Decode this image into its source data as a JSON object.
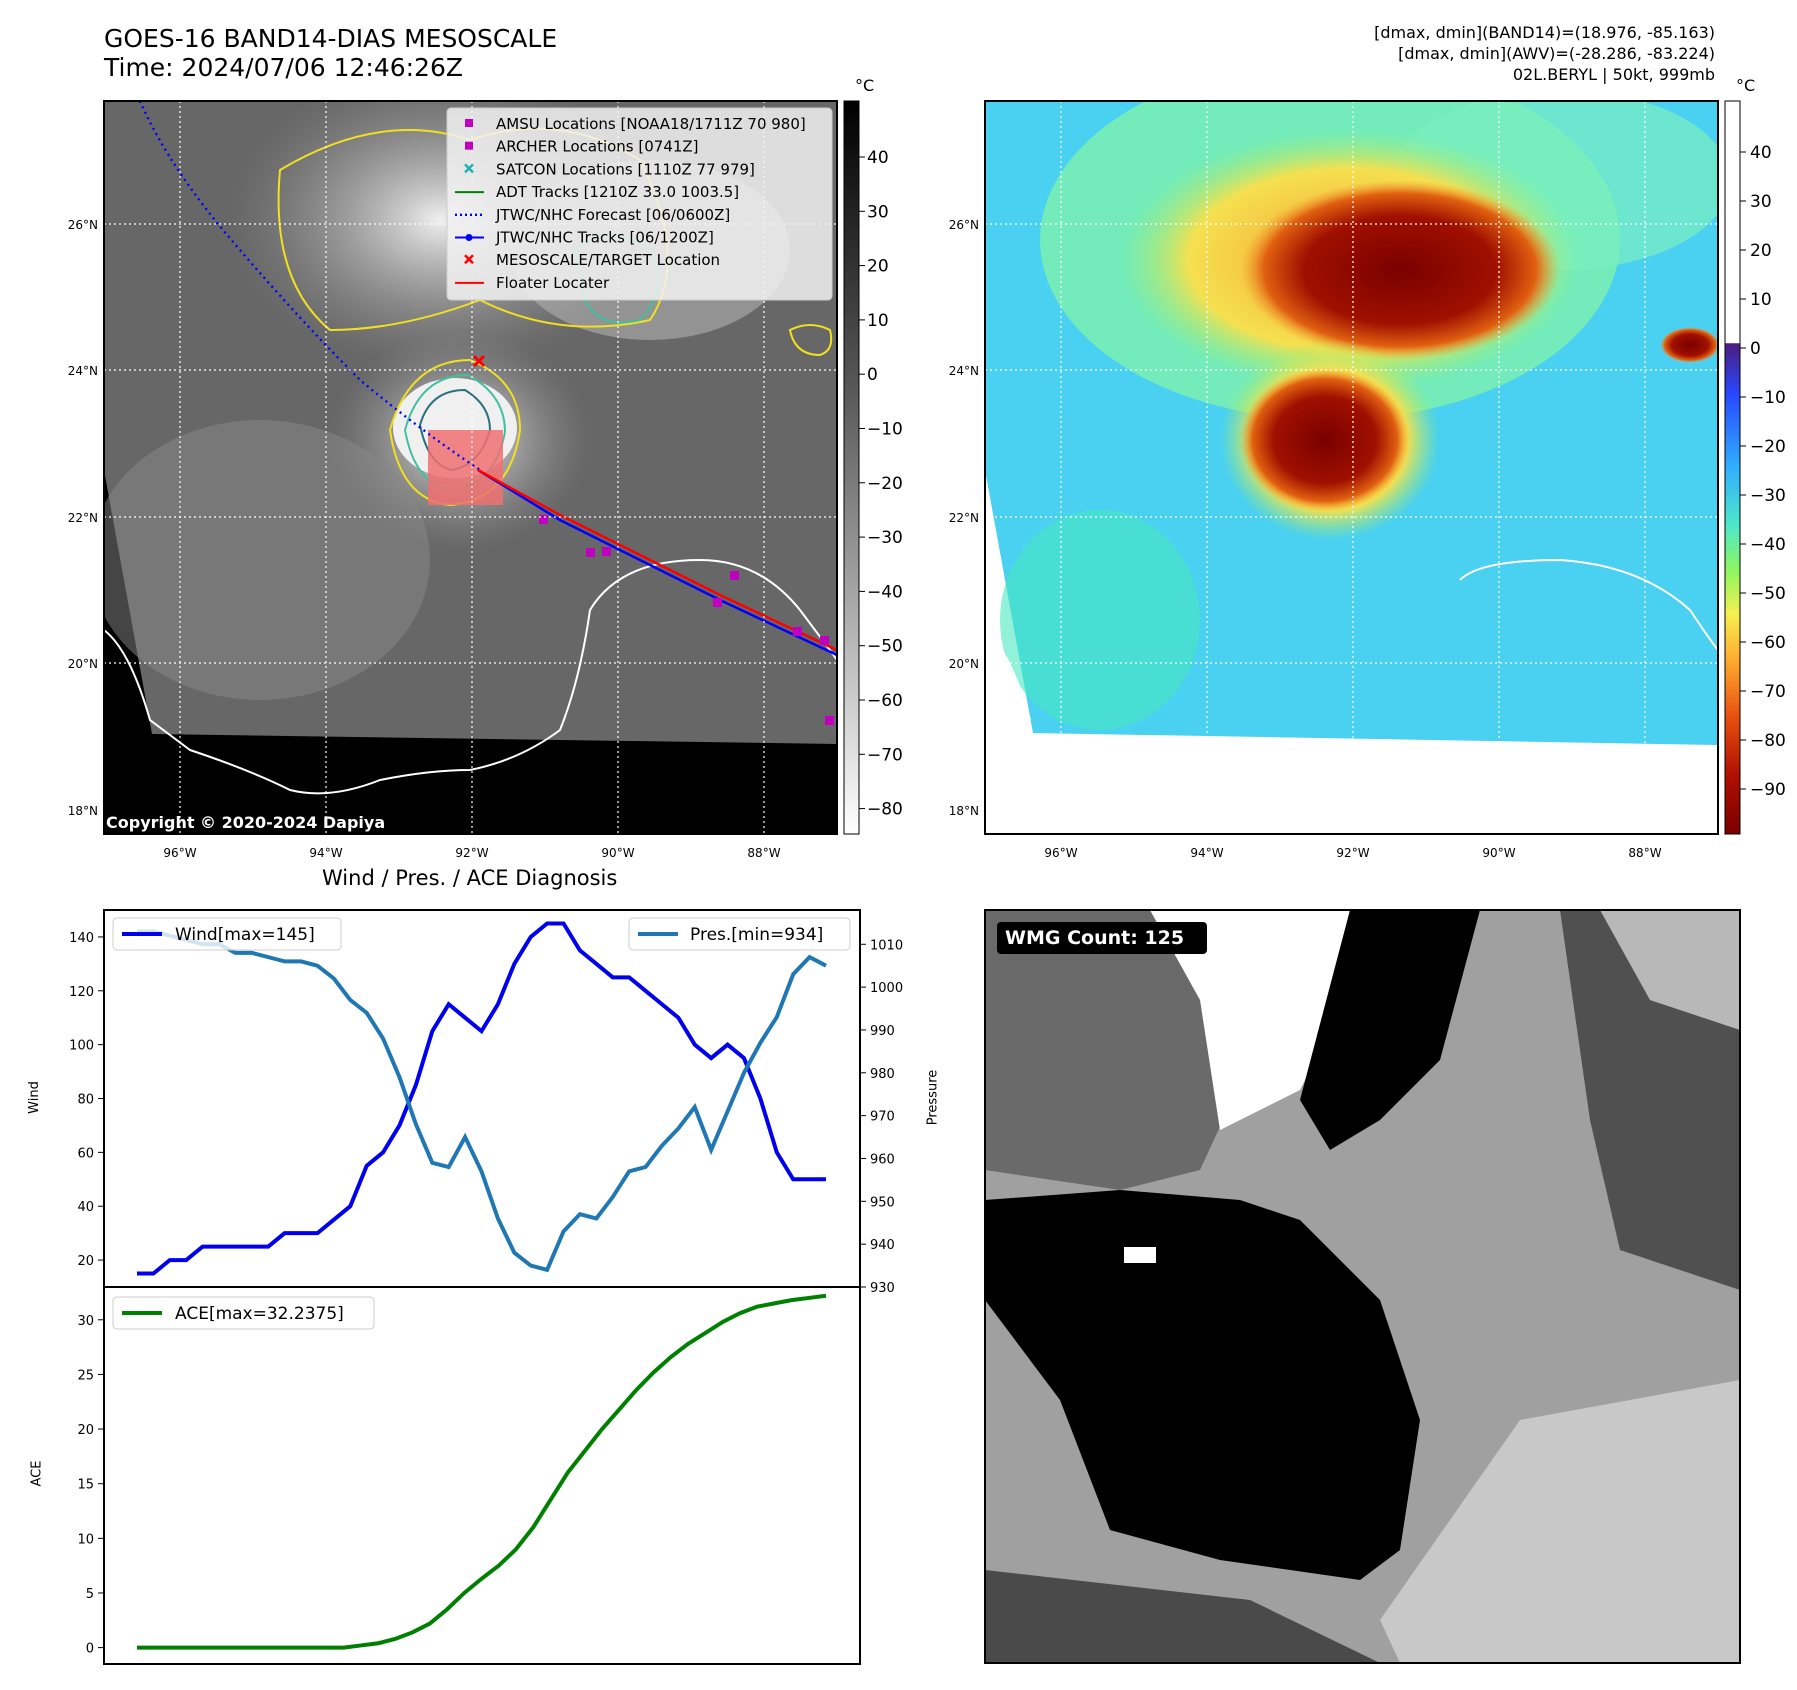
{
  "header": {
    "title_line1": "GOES-16 BAND14-DIAS MESOSCALE",
    "title_line2": "Time: 2024/07/06 12:46:26Z",
    "meta_line1": "[dmax, dmin](BAND14)=(18.976, -85.163)",
    "meta_line2": "[dmax, dmin](AWV)=(-28.286, -83.224)",
    "meta_line3": "02L.BERYL | 50kt, 999mb"
  },
  "map_axes": {
    "lat_ticks": [
      "26°N",
      "24°N",
      "22°N",
      "20°N",
      "18°N"
    ],
    "lon_ticks": [
      "96°W",
      "94°W",
      "92°W",
      "90°W",
      "88°W"
    ],
    "copyright": "Copyright © 2020-2024 Dapiya"
  },
  "colorbar_left": {
    "unit": "°C",
    "ticks": [
      "40",
      "30",
      "20",
      "10",
      "0",
      "−10",
      "−20",
      "−30",
      "−40",
      "−50",
      "−60",
      "−70",
      "−80"
    ]
  },
  "colorbar_right": {
    "unit": "°C",
    "ticks": [
      "40",
      "30",
      "20",
      "10",
      "0",
      "−10",
      "−20",
      "−30",
      "−40",
      "−50",
      "−60",
      "−70",
      "−80",
      "−90"
    ]
  },
  "legend": {
    "items": [
      {
        "label": "AMSU Locations [NOAA18/1711Z 70 980]",
        "color": "#c000c0",
        "marker": "square"
      },
      {
        "label": "ARCHER Locations [0741Z]",
        "color": "#c000c0",
        "marker": "square"
      },
      {
        "label": "SATCON Locations [1110Z 77 979]",
        "color": "#20b0b0",
        "marker": "x"
      },
      {
        "label": "ADT Tracks [1210Z 33.0 1003.5]",
        "color": "#008000",
        "marker": "line"
      },
      {
        "label": "JTWC/NHC Forecast [06/0600Z]",
        "color": "#0000ff",
        "marker": "dotted"
      },
      {
        "label": "JTWC/NHC Tracks [06/1200Z]",
        "color": "#0000ff",
        "marker": "line-dot"
      },
      {
        "label": "MESOSCALE/TARGET Location",
        "color": "#ff0000",
        "marker": "x"
      },
      {
        "label": "Floater Locater",
        "color": "#ff0000",
        "marker": "line"
      }
    ]
  },
  "wmg": {
    "label": "WMG Count: 125"
  },
  "chart_data": [
    {
      "type": "line",
      "title": "Wind / Pres. / ACE Diagnosis",
      "ylabel": "Wind",
      "y2label": "Pressure",
      "ylim": [
        10,
        150
      ],
      "y2lim": [
        930,
        1018
      ],
      "yticks": [
        20,
        40,
        60,
        80,
        100,
        120,
        140
      ],
      "y2ticks": [
        930,
        940,
        950,
        960,
        970,
        980,
        990,
        1000,
        1010
      ],
      "series": [
        {
          "name": "Wind[max=145]",
          "color": "#0000ee",
          "values": [
            15,
            15,
            20,
            20,
            25,
            25,
            25,
            25,
            25,
            30,
            30,
            30,
            35,
            40,
            55,
            60,
            70,
            85,
            105,
            115,
            110,
            105,
            115,
            130,
            140,
            145,
            145,
            135,
            130,
            125,
            125,
            120,
            115,
            110,
            100,
            95,
            100,
            95,
            80,
            60,
            50,
            50,
            50
          ]
        },
        {
          "name": "Pres.[min=934]",
          "color": "#1f77b4",
          "values": [
            1013,
            1013,
            1012,
            1011,
            1010,
            1010,
            1008,
            1008,
            1007,
            1006,
            1006,
            1005,
            1002,
            997,
            994,
            988,
            979,
            968,
            959,
            958,
            965,
            957,
            946,
            938,
            935,
            934,
            943,
            947,
            946,
            951,
            957,
            958,
            963,
            967,
            972,
            962,
            971,
            980,
            987,
            993,
            1003,
            1007,
            1005
          ]
        }
      ]
    },
    {
      "type": "line",
      "ylabel": "ACE",
      "ylim": [
        -1.5,
        33
      ],
      "yticks": [
        0,
        5,
        10,
        15,
        20,
        25,
        30
      ],
      "series": [
        {
          "name": "ACE[max=32.2375]",
          "color": "#008000",
          "values": [
            0,
            0,
            0,
            0,
            0,
            0,
            0,
            0,
            0,
            0,
            0,
            0,
            0,
            0.2,
            0.4,
            0.8,
            1.4,
            2.2,
            3.5,
            5.0,
            6.3,
            7.5,
            9.0,
            11.0,
            13.5,
            16.0,
            18.0,
            20.0,
            21.8,
            23.6,
            25.2,
            26.6,
            27.8,
            28.8,
            29.8,
            30.6,
            31.2,
            31.5,
            31.8,
            32.0,
            32.2
          ]
        }
      ]
    }
  ]
}
